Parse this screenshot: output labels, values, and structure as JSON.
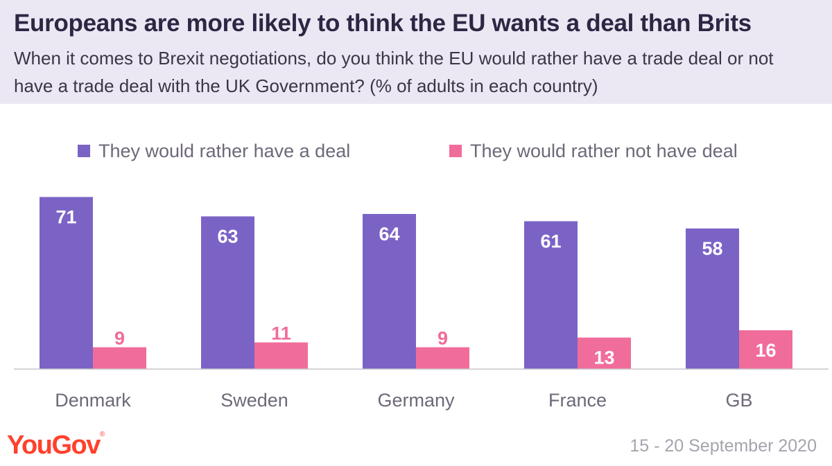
{
  "header": {
    "title": "Europeans are more likely to think the EU wants a deal than Brits",
    "subtitle": "When it comes to Brexit negotiations, do you think the EU would rather have a trade deal or not have a trade deal with the UK Government? (% of adults in each country)"
  },
  "footer": {
    "logo": "YouGov",
    "date": "15 - 20 September 2020"
  },
  "chart_data": {
    "type": "bar",
    "categories": [
      "Denmark",
      "Sweden",
      "Germany",
      "France",
      "GB"
    ],
    "series": [
      {
        "name": "They would rather have a deal",
        "values": [
          71,
          63,
          64,
          61,
          58
        ],
        "color": "#7b63c6"
      },
      {
        "name": "They would rather not have deal",
        "values": [
          9,
          11,
          9,
          13,
          16
        ],
        "color": "#f06c9b"
      }
    ],
    "ylim": [
      0,
      75
    ],
    "legend": "top",
    "grid": false,
    "data_labels": true
  },
  "colors": {
    "header_bg": "#ebe8f4",
    "brand": "#ff412c"
  }
}
